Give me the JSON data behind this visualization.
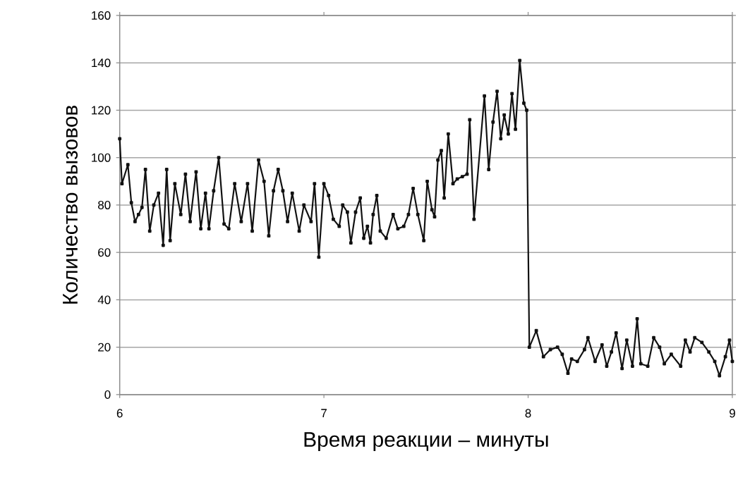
{
  "chart_data": {
    "type": "line",
    "xlabel": "Время реакции – минуты",
    "ylabel": "Количество вызовов",
    "x": [
      6.0,
      6.011,
      6.04,
      6.057,
      6.075,
      6.092,
      6.109,
      6.126,
      6.147,
      6.167,
      6.19,
      6.213,
      6.23,
      6.247,
      6.27,
      6.299,
      6.322,
      6.345,
      6.374,
      6.397,
      6.42,
      6.437,
      6.46,
      6.485,
      6.511,
      6.534,
      6.563,
      6.595,
      6.626,
      6.649,
      6.68,
      6.707,
      6.73,
      6.753,
      6.776,
      6.799,
      6.822,
      6.845,
      6.879,
      6.902,
      6.937,
      6.954,
      6.975,
      7.0,
      7.023,
      7.046,
      7.075,
      7.092,
      7.115,
      7.132,
      7.155,
      7.178,
      7.195,
      7.213,
      7.228,
      7.241,
      7.259,
      7.276,
      7.305,
      7.339,
      7.362,
      7.391,
      7.414,
      7.437,
      7.46,
      7.489,
      7.506,
      7.529,
      7.542,
      7.558,
      7.575,
      7.589,
      7.609,
      7.632,
      7.653,
      7.678,
      7.701,
      7.714,
      7.735,
      7.786,
      7.807,
      7.828,
      7.848,
      7.866,
      7.883,
      7.903,
      7.921,
      7.938,
      7.959,
      7.979,
      7.993,
      8.006,
      8.04,
      8.075,
      8.109,
      8.144,
      8.167,
      8.195,
      8.213,
      8.241,
      8.276,
      8.293,
      8.328,
      8.362,
      8.385,
      8.408,
      8.431,
      8.46,
      8.483,
      8.511,
      8.534,
      8.552,
      8.586,
      8.615,
      8.644,
      8.667,
      8.701,
      8.747,
      8.77,
      8.793,
      8.816,
      8.851,
      8.885,
      8.914,
      8.937,
      8.966,
      8.986,
      9.0
    ],
    "values": [
      108,
      89,
      97,
      81,
      73,
      76,
      79,
      95,
      69,
      80,
      85,
      63,
      95,
      65,
      89,
      76,
      93,
      73,
      94,
      70,
      85,
      70,
      86,
      100,
      72,
      70,
      89,
      73,
      89,
      69,
      99,
      90,
      67,
      86,
      95,
      86,
      73,
      85,
      69,
      80,
      73,
      89,
      58,
      89,
      84,
      74,
      71,
      80,
      77,
      64,
      77,
      83,
      66,
      71,
      64,
      76,
      84,
      69,
      66,
      76,
      70,
      71,
      76,
      87,
      76,
      65,
      90,
      78,
      75,
      99,
      103,
      83,
      110,
      89,
      91,
      92,
      93,
      116,
      74,
      126,
      95,
      115,
      128,
      108,
      118,
      110,
      127,
      112,
      141,
      123,
      120,
      20,
      27,
      16,
      19,
      20,
      17,
      9,
      15,
      14,
      19,
      24,
      14,
      21,
      12,
      18,
      26,
      11,
      23,
      12,
      32,
      13,
      12,
      24,
      20,
      13,
      17,
      12,
      23,
      18,
      24,
      22,
      18,
      14,
      8,
      16,
      23,
      14
    ],
    "color": "#111111",
    "xlim": [
      6,
      9
    ],
    "ylim": [
      0,
      160
    ],
    "xticks": [
      6,
      7,
      8,
      9
    ],
    "yticks": [
      0,
      20,
      40,
      60,
      80,
      100,
      120,
      140,
      160
    ],
    "grid": "y",
    "marker": "square",
    "line_style": "solid"
  }
}
